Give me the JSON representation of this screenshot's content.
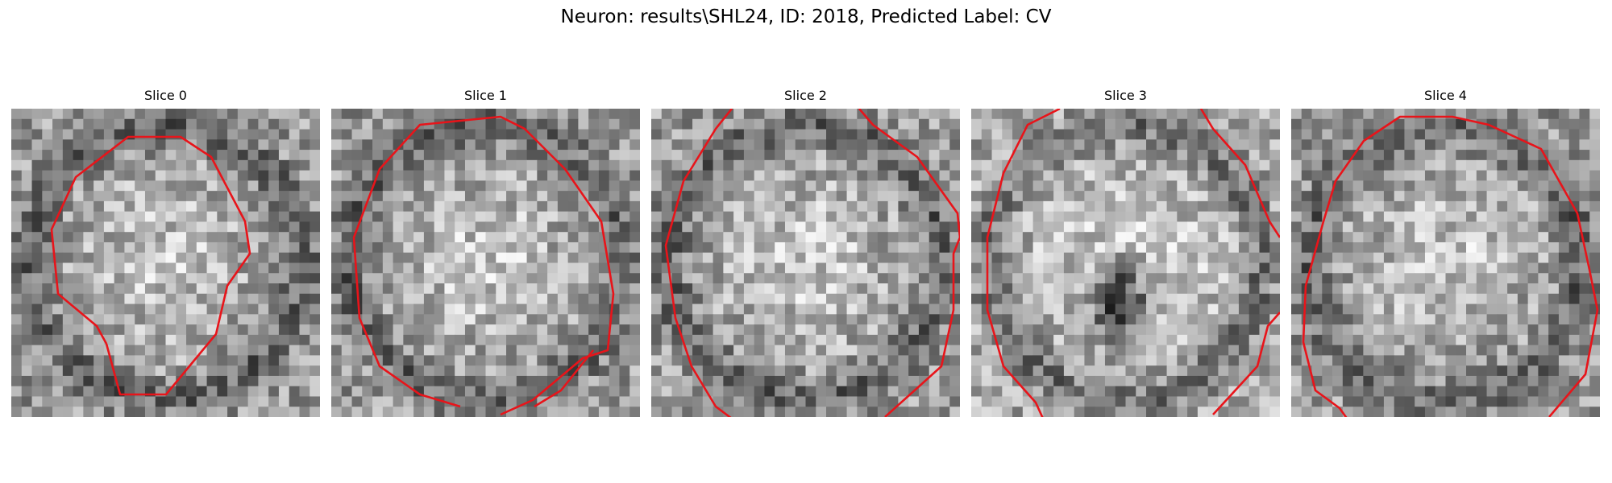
{
  "figure": {
    "suptitle": "Neuron: results\\SHL24, ID: 2018, Predicted Label: CV"
  },
  "panels": [
    {
      "title": "Slice 0",
      "shape": "ring",
      "seed": 11
    },
    {
      "title": "Slice 1",
      "shape": "ring",
      "seed": 27
    },
    {
      "title": "Slice 2",
      "shape": "ring",
      "seed": 43
    },
    {
      "title": "Slice 3",
      "shape": "ring-dark-center",
      "seed": 59
    },
    {
      "title": "Slice 4",
      "shape": "ring",
      "seed": 71
    }
  ],
  "colors": {
    "contour": "#e8141a",
    "colormap": "gray"
  }
}
